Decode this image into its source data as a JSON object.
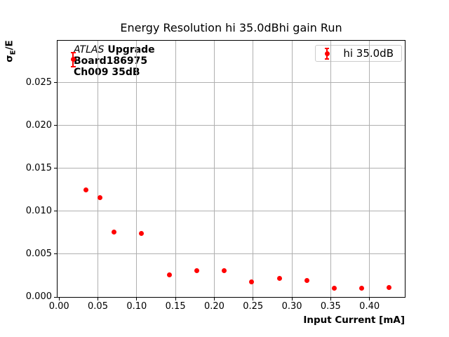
{
  "chart_data": {
    "type": "scatter",
    "title": "Energy Resolution hi 35.0dBhi gain Run",
    "xlabel": "Input Current [mA]",
    "ylabel": "σE/E",
    "ylabel_parts": {
      "base": "σ",
      "subscript": "E",
      "suffix": "/E"
    },
    "legend": {
      "position": "upper right",
      "entries": [
        "hi 35.0dB"
      ]
    },
    "grid": true,
    "xlim": [
      -0.002,
      0.4455
    ],
    "ylim": [
      0,
      0.0299
    ],
    "x_ticks": [
      {
        "value": 0.0,
        "label": "0.00"
      },
      {
        "value": 0.05,
        "label": "0.05"
      },
      {
        "value": 0.1,
        "label": "0.10"
      },
      {
        "value": 0.15,
        "label": "0.15"
      },
      {
        "value": 0.2,
        "label": "0.20"
      },
      {
        "value": 0.25,
        "label": "0.25"
      },
      {
        "value": 0.3,
        "label": "0.30"
      },
      {
        "value": 0.35,
        "label": "0.35"
      },
      {
        "value": 0.4,
        "label": "0.40"
      }
    ],
    "y_ticks": [
      {
        "value": 0.0,
        "label": "0.000"
      },
      {
        "value": 0.005,
        "label": "0.005"
      },
      {
        "value": 0.01,
        "label": "0.010"
      },
      {
        "value": 0.015,
        "label": "0.015"
      },
      {
        "value": 0.02,
        "label": "0.020"
      },
      {
        "value": 0.025,
        "label": "0.025"
      }
    ],
    "colors": {
      "series": "#ff0000",
      "grid": "#b0b0b0",
      "legend_border": "#cccccc",
      "text": "#000000"
    },
    "series": [
      {
        "name": "hi 35.0dB",
        "marker": "circle-with-errorbar",
        "x": [
          0.018,
          0.035,
          0.053,
          0.071,
          0.106,
          0.142,
          0.177,
          0.213,
          0.248,
          0.284,
          0.319,
          0.355,
          0.39,
          0.425
        ],
        "y": [
          0.0277,
          0.0125,
          0.0116,
          0.0076,
          0.0074,
          0.0026,
          0.0031,
          0.0031,
          0.0018,
          0.0022,
          0.0019,
          0.001,
          0.001,
          0.0011
        ],
        "yerr": [
          0.0008,
          0,
          0,
          0,
          0,
          0,
          0,
          0,
          0,
          0,
          0,
          0,
          0,
          0
        ]
      }
    ]
  },
  "annotation": {
    "experiment": "ATLAS",
    "program": "Upgrade",
    "board": "Board186975",
    "channel": "Ch009 35dB"
  }
}
